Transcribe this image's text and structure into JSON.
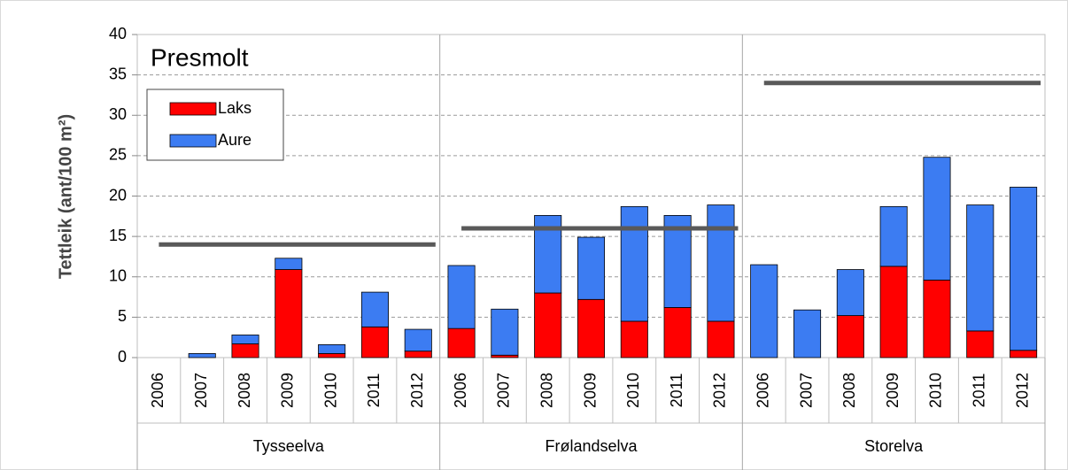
{
  "chart_data": {
    "type": "bar",
    "stacked": true,
    "title": "Presmolt",
    "y_label": "Tettleik (ant/100 m²)",
    "categories": [
      "2006",
      "2007",
      "2008",
      "2009",
      "2010",
      "2011",
      "2012",
      "2006",
      "2007",
      "2008",
      "2009",
      "2010",
      "2011",
      "2012",
      "2006",
      "2007",
      "2008",
      "2009",
      "2010",
      "2011",
      "2012"
    ],
    "groups": [
      {
        "name": "Tysseelva",
        "reference": 14
      },
      {
        "name": "Frølandselva",
        "reference": 16
      },
      {
        "name": "Storelva",
        "reference": 34
      }
    ],
    "series": [
      {
        "name": "Laks",
        "color": "#ff0000",
        "values": [
          0,
          0,
          1.7,
          10.9,
          0.5,
          3.8,
          0.8,
          3.6,
          0.3,
          8.0,
          7.2,
          4.5,
          6.2,
          4.5,
          0,
          0,
          5.2,
          11.3,
          9.6,
          3.3,
          0.9
        ]
      },
      {
        "name": "Aure",
        "color": "#3c7cf2",
        "values": [
          0,
          0.5,
          1.1,
          1.4,
          1.1,
          4.3,
          2.7,
          7.8,
          5.7,
          9.6,
          7.7,
          14.2,
          11.4,
          14.4,
          11.5,
          5.9,
          5.7,
          7.4,
          15.2,
          15.6,
          20.2
        ]
      }
    ],
    "reference_color": "#595959",
    "ylim": [
      0,
      40
    ],
    "yticks": [
      0,
      5,
      10,
      15,
      20,
      25,
      30,
      35,
      40
    ],
    "grid": true,
    "legend": "upper left"
  }
}
